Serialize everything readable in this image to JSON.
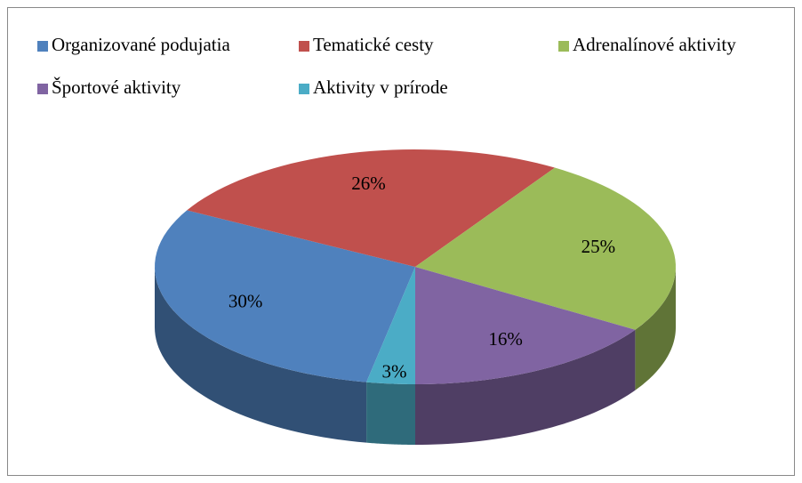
{
  "chart_data": {
    "type": "pie",
    "categories": [
      "Organizované podujatia",
      "Tematické cesty",
      "Adrenalínové aktivity",
      "Športové aktivity",
      "Aktivity v prírode"
    ],
    "values": [
      30,
      26,
      25,
      16,
      3
    ],
    "value_labels": [
      "30%",
      "26%",
      "25%",
      "16%",
      "3%"
    ],
    "colors": [
      "#4f81bd",
      "#c0504d",
      "#9bbb59",
      "#8064a2",
      "#4bacc6"
    ],
    "legend": "top"
  }
}
